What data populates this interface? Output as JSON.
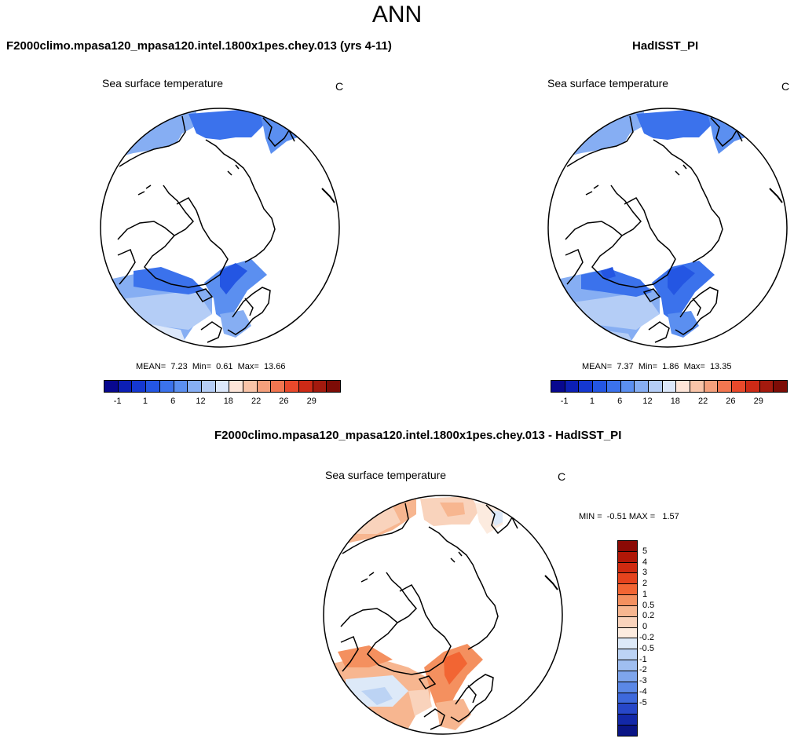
{
  "page": {
    "title": "ANN"
  },
  "panels": {
    "model": {
      "title": "F2000climo.mpasa120_mpasa120.intel.1800x1pes.chey.013 (yrs 4-11)",
      "field": "Sea surface temperature",
      "units": "C",
      "stats": "MEAN=  7.23  Min=  0.61  Max=  13.66"
    },
    "obs": {
      "title": "HadISST_PI",
      "field": "Sea surface temperature",
      "units": "C",
      "stats": "MEAN=  7.37  Min=  1.86  Max=  13.35"
    },
    "diff": {
      "title": "F2000climo.mpasa120_mpasa120.intel.1800x1pes.chey.013 - HadISST_PI",
      "field": "Sea surface temperature",
      "units": "C",
      "stats": "MIN =  -0.51 MAX =   1.57"
    }
  },
  "colorbars": {
    "abs": {
      "colors": [
        "#08088f",
        "#0c1fb5",
        "#1538d1",
        "#2456e3",
        "#3b72ec",
        "#5b8ff0",
        "#86aef3",
        "#b4cdf6",
        "#dbe7fa",
        "#fde5d8",
        "#f9c4a8",
        "#f5a07c",
        "#f27650",
        "#e9492b",
        "#cc2a16",
        "#a31a0e",
        "#7d0c06"
      ],
      "labels": [
        "-1",
        "1",
        "6",
        "12",
        "18",
        "22",
        "26",
        "29"
      ]
    },
    "diff": {
      "colors_top_to_bottom": [
        "#8b0a05",
        "#b01707",
        "#cf2a10",
        "#e5431d",
        "#f26533",
        "#f4905f",
        "#f7b690",
        "#f9d3bc",
        "#fcebdf",
        "#dde9f8",
        "#bcd3f4",
        "#9fbef0",
        "#7ea5ec",
        "#5b88e6",
        "#3e69dc",
        "#2747c8",
        "#1328a8",
        "#0a1585"
      ],
      "labels": [
        "5",
        "4",
        "3",
        "2",
        "1",
        "0.5",
        "0.2",
        "0",
        "-0.2",
        "-0.5",
        "-1",
        "-2",
        "-3",
        "-4",
        "-5"
      ]
    }
  }
}
